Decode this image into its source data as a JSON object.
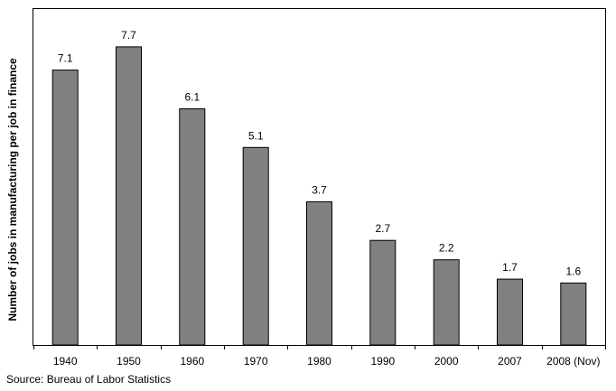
{
  "chart_data": {
    "type": "bar",
    "categories": [
      "1940",
      "1950",
      "1960",
      "1970",
      "1980",
      "1990",
      "2000",
      "2007",
      "2008 (Nov)"
    ],
    "values": [
      7.1,
      7.7,
      6.1,
      5.1,
      3.7,
      2.7,
      2.2,
      1.7,
      1.6
    ],
    "data_labels": [
      "7.1",
      "7.7",
      "6.1",
      "5.1",
      "3.7",
      "2.7",
      "2.2",
      "1.7",
      "1.6"
    ],
    "ylabel": "Number of jobs in manufacturing per job in finance",
    "ylim": [
      0,
      8.7
    ],
    "grid": false,
    "bar_color": "#808080",
    "bar_edge_color": "#000000"
  },
  "source": "Source: Bureau of Labor Statistics"
}
